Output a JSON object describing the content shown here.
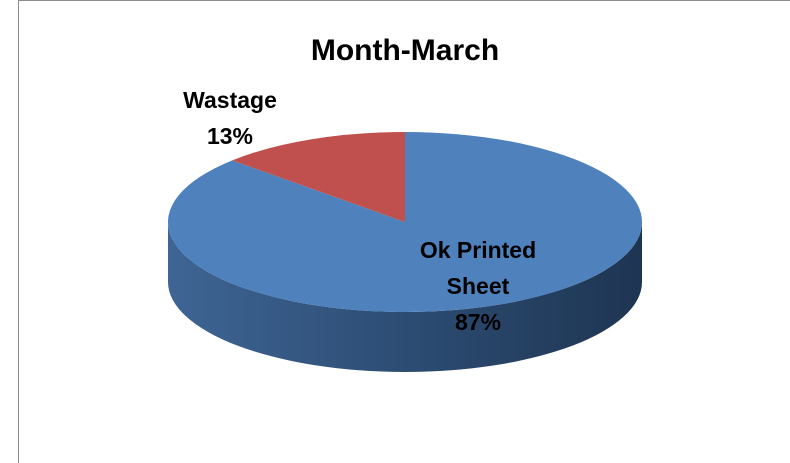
{
  "chart_data": {
    "type": "pie",
    "title": "Month-March",
    "categories": [
      "Ok Printed Sheet",
      "Wastage"
    ],
    "values": [
      87,
      13
    ],
    "value_labels": [
      "87%",
      "13%"
    ],
    "colors": [
      "#4f81bd",
      "#c0504d"
    ]
  }
}
